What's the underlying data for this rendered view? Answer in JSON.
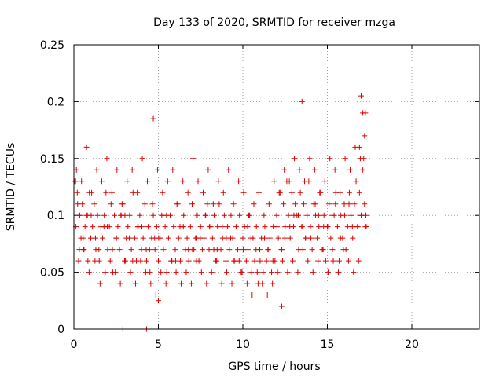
{
  "chart_data": {
    "type": "scatter",
    "title": "Day 133 of 2020, SRMTID for receiver mzga",
    "xlabel": "GPS time / hours",
    "ylabel": "SRMTID / TECUs",
    "xlim": [
      0,
      24
    ],
    "ylim": [
      0,
      0.25
    ],
    "grid": true,
    "x_ticks": [
      0,
      5,
      10,
      15,
      20
    ],
    "x_tick_labels": [
      "0",
      "5",
      "10",
      "15",
      "20"
    ],
    "y_ticks": [
      0,
      0.05,
      0.1,
      0.15,
      0.2,
      0.25
    ],
    "y_tick_labels": [
      "0",
      "0.05",
      "0.1",
      "0.15",
      "0.2",
      "0.25"
    ],
    "marker": "+",
    "marker_color": "#e00000",
    "series": [
      {
        "name": "mzga",
        "x": [
          0.05,
          0.12,
          0.2,
          0.28,
          0.35,
          0.42,
          0.5,
          0.58,
          0.66,
          0.75,
          0.83,
          0.92,
          1.0,
          1.1,
          1.2,
          1.3,
          1.4,
          1.5,
          1.6,
          1.7,
          1.8,
          1.9,
          2.0,
          2.1,
          2.2,
          2.3,
          2.4,
          2.5,
          2.6,
          2.7,
          2.8,
          2.9,
          3.0,
          3.1,
          3.2,
          3.3,
          3.4,
          3.5,
          3.6,
          3.7,
          3.8,
          3.9,
          4.0,
          4.1,
          4.2,
          4.3,
          4.4,
          4.5,
          4.6,
          4.7,
          4.8,
          4.9,
          5.0,
          5.1,
          5.2,
          5.3,
          5.4,
          5.5,
          5.6,
          5.7,
          5.8,
          5.9,
          6.0,
          6.1,
          6.2,
          6.3,
          6.4,
          6.5,
          6.6,
          6.7,
          6.8,
          6.9,
          7.0,
          7.1,
          7.2,
          7.3,
          7.4,
          7.5,
          7.6,
          7.7,
          7.8,
          7.9,
          8.0,
          8.1,
          8.2,
          8.3,
          8.4,
          8.5,
          8.6,
          8.7,
          8.8,
          8.9,
          9.0,
          9.1,
          9.2,
          9.3,
          9.4,
          9.5,
          9.6,
          9.7,
          9.8,
          9.9,
          10.0,
          10.1,
          10.2,
          10.3,
          10.4,
          10.5,
          10.6,
          10.7,
          10.8,
          10.9,
          11.0,
          11.1,
          11.2,
          11.3,
          11.4,
          11.5,
          11.6,
          11.7,
          11.8,
          11.9,
          12.0,
          12.1,
          12.2,
          12.3,
          12.4,
          12.5,
          12.6,
          12.7,
          12.8,
          12.9,
          13.0,
          13.1,
          13.2,
          13.3,
          13.4,
          13.5,
          13.6,
          13.7,
          13.8,
          13.9,
          14.0,
          14.1,
          14.2,
          14.3,
          14.4,
          14.5,
          14.6,
          14.7,
          14.8,
          14.9,
          15.0,
          15.1,
          15.2,
          15.3,
          15.4,
          15.5,
          15.6,
          15.7,
          15.8,
          15.9,
          16.0,
          16.1,
          16.2,
          16.3,
          16.4,
          16.5,
          16.6,
          16.7,
          16.8,
          16.9,
          17.0,
          17.1,
          17.2,
          17.3,
          0.1,
          0.3,
          0.6,
          0.9,
          1.25,
          1.55,
          1.85,
          2.15,
          2.45,
          2.75,
          3.05,
          3.35,
          3.65,
          3.95,
          4.25,
          4.55,
          4.85,
          5.15,
          5.45,
          5.75,
          6.05,
          6.35,
          6.65,
          6.95,
          7.25,
          7.55,
          7.85,
          8.15,
          8.45,
          8.75,
          9.05,
          9.35,
          9.65,
          9.95,
          10.25,
          10.55,
          10.85,
          11.15,
          11.45,
          11.75,
          12.05,
          12.35,
          12.65,
          12.95,
          13.25,
          13.55,
          13.85,
          14.15,
          14.45,
          14.75,
          15.05,
          15.35,
          15.65,
          15.95,
          16.25,
          16.55,
          16.85,
          17.15,
          0.15,
          0.45,
          0.75,
          1.05,
          1.35,
          1.65,
          1.95,
          2.25,
          2.55,
          2.85,
          3.15,
          3.45,
          3.75,
          4.05,
          4.35,
          4.65,
          4.95,
          5.25,
          5.55,
          5.85,
          6.15,
          6.45,
          6.75,
          7.05,
          7.35,
          7.65,
          7.95,
          8.25,
          8.55,
          8.85,
          9.15,
          9.45,
          9.75,
          10.05,
          10.35,
          10.65,
          10.95,
          11.25,
          11.55,
          11.85,
          12.15,
          12.45,
          12.75,
          13.05,
          13.35,
          13.65,
          13.95,
          14.25,
          14.55,
          14.85,
          15.15,
          15.45,
          15.75,
          16.05,
          16.35,
          16.65,
          16.95,
          17.25,
          2.9,
          4.3,
          12.3,
          5.0,
          4.7,
          13.5,
          17.0,
          17.2,
          17.1,
          16.9,
          17.25,
          0.22,
          0.55,
          1.02,
          1.48,
          1.98,
          2.52,
          3.02,
          3.48,
          4.02,
          4.48,
          5.02,
          5.48,
          6.02,
          6.48,
          7.02,
          7.48,
          8.02,
          8.48,
          9.02,
          9.48,
          10.02,
          10.48,
          11.02,
          11.48,
          12.02,
          12.48,
          13.02,
          13.48,
          14.02,
          14.48,
          15.02,
          15.48,
          16.02,
          16.48,
          17.02,
          0.32,
          0.8,
          1.28,
          1.78,
          2.28,
          2.78,
          3.28,
          3.78,
          4.28,
          4.78,
          5.28,
          5.78,
          6.28,
          6.78,
          7.28,
          7.78,
          8.28,
          8.78,
          9.28,
          9.78,
          10.28,
          10.78,
          11.28,
          11.78,
          12.28,
          12.78,
          13.28,
          13.78,
          14.28,
          14.78,
          15.28,
          15.78,
          16.28,
          16.78,
          17.28
        ],
        "y": [
          0.13,
          0.09,
          0.12,
          0.06,
          0.1,
          0.08,
          0.11,
          0.07,
          0.09,
          0.1,
          0.06,
          0.12,
          0.08,
          0.09,
          0.11,
          0.07,
          0.1,
          0.06,
          0.09,
          0.08,
          0.1,
          0.12,
          0.07,
          0.09,
          0.11,
          0.05,
          0.1,
          0.08,
          0.09,
          0.07,
          0.1,
          0.11,
          0.06,
          0.08,
          0.09,
          0.1,
          0.07,
          0.12,
          0.08,
          0.06,
          0.09,
          0.1,
          0.07,
          0.08,
          0.11,
          0.06,
          0.09,
          0.05,
          0.08,
          0.1,
          0.07,
          0.09,
          0.06,
          0.08,
          0.1,
          0.07,
          0.09,
          0.05,
          0.08,
          0.1,
          0.06,
          0.09,
          0.07,
          0.11,
          0.08,
          0.06,
          0.09,
          0.1,
          0.07,
          0.08,
          0.06,
          0.09,
          0.11,
          0.07,
          0.08,
          0.1,
          0.06,
          0.09,
          0.07,
          0.08,
          0.1,
          0.11,
          0.07,
          0.09,
          0.08,
          0.1,
          0.06,
          0.09,
          0.11,
          0.07,
          0.08,
          0.1,
          0.06,
          0.09,
          0.07,
          0.1,
          0.08,
          0.06,
          0.09,
          0.07,
          0.1,
          0.05,
          0.08,
          0.09,
          0.06,
          0.07,
          0.1,
          0.05,
          0.08,
          0.06,
          0.09,
          0.04,
          0.07,
          0.08,
          0.05,
          0.09,
          0.06,
          0.07,
          0.08,
          0.05,
          0.09,
          0.06,
          0.1,
          0.08,
          0.12,
          0.07,
          0.11,
          0.09,
          0.13,
          0.1,
          0.08,
          0.12,
          0.09,
          0.11,
          0.1,
          0.07,
          0.12,
          0.09,
          0.11,
          0.08,
          0.1,
          0.13,
          0.09,
          0.07,
          0.11,
          0.1,
          0.08,
          0.09,
          0.12,
          0.07,
          0.1,
          0.06,
          0.09,
          0.11,
          0.08,
          0.07,
          0.1,
          0.12,
          0.09,
          0.06,
          0.1,
          0.08,
          0.11,
          0.07,
          0.09,
          0.12,
          0.1,
          0.08,
          0.11,
          0.13,
          0.09,
          0.12,
          0.1,
          0.14,
          0.11,
          0.09,
          0.13,
          0.1,
          0.07,
          0.05,
          0.06,
          0.04,
          0.05,
          0.06,
          0.05,
          0.04,
          0.06,
          0.05,
          0.04,
          0.06,
          0.05,
          0.04,
          0.03,
          0.05,
          0.04,
          0.06,
          0.05,
          0.04,
          0.05,
          0.04,
          0.06,
          0.05,
          0.04,
          0.05,
          0.06,
          0.04,
          0.05,
          0.04,
          0.06,
          0.05,
          0.04,
          0.03,
          0.05,
          0.04,
          0.03,
          0.04,
          0.05,
          0.06,
          0.05,
          0.06,
          0.05,
          0.07,
          0.06,
          0.05,
          0.06,
          0.07,
          0.05,
          0.06,
          0.05,
          0.07,
          0.06,
          0.05,
          0.06,
          0.15,
          0.14,
          0.13,
          0.16,
          0.12,
          0.14,
          0.13,
          0.15,
          0.12,
          0.14,
          0.11,
          0.13,
          0.14,
          0.12,
          0.15,
          0.13,
          0.11,
          0.14,
          0.12,
          0.13,
          0.14,
          0.11,
          0.13,
          0.12,
          0.15,
          0.13,
          0.12,
          0.14,
          0.11,
          0.13,
          0.12,
          0.14,
          0.11,
          0.13,
          0.12,
          0.1,
          0.11,
          0.12,
          0.1,
          0.11,
          0.13,
          0.12,
          0.14,
          0.13,
          0.15,
          0.14,
          0.13,
          0.15,
          0.14,
          0.12,
          0.13,
          0.15,
          0.14,
          0.12,
          0.15,
          0.14,
          0.16,
          0.15,
          0.19,
          0.0,
          0.0,
          0.02,
          0.025,
          0.185,
          0.2,
          0.205,
          0.17,
          0.19,
          0.16,
          0.09,
          0.11,
          0.08,
          0.1,
          0.07,
          0.09,
          0.08,
          0.1,
          0.06,
          0.09,
          0.07,
          0.08,
          0.1,
          0.06,
          0.09,
          0.07,
          0.08,
          0.09,
          0.07,
          0.08,
          0.06,
          0.07,
          0.08,
          0.06,
          0.07,
          0.09,
          0.08,
          0.1,
          0.09,
          0.08,
          0.1,
          0.09,
          0.11,
          0.1,
          0.09,
          0.1,
          0.07,
          0.1,
          0.08,
          0.09,
          0.07,
          0.1,
          0.08,
          0.09,
          0.07,
          0.08,
          0.1,
          0.06,
          0.09,
          0.07,
          0.08,
          0.1,
          0.07,
          0.09,
          0.08,
          0.06,
          0.09,
          0.07,
          0.08,
          0.06,
          0.07,
          0.09,
          0.1,
          0.08,
          0.11,
          0.09,
          0.1,
          0.08,
          0.11,
          0.09,
          0.1
        ]
      }
    ]
  }
}
